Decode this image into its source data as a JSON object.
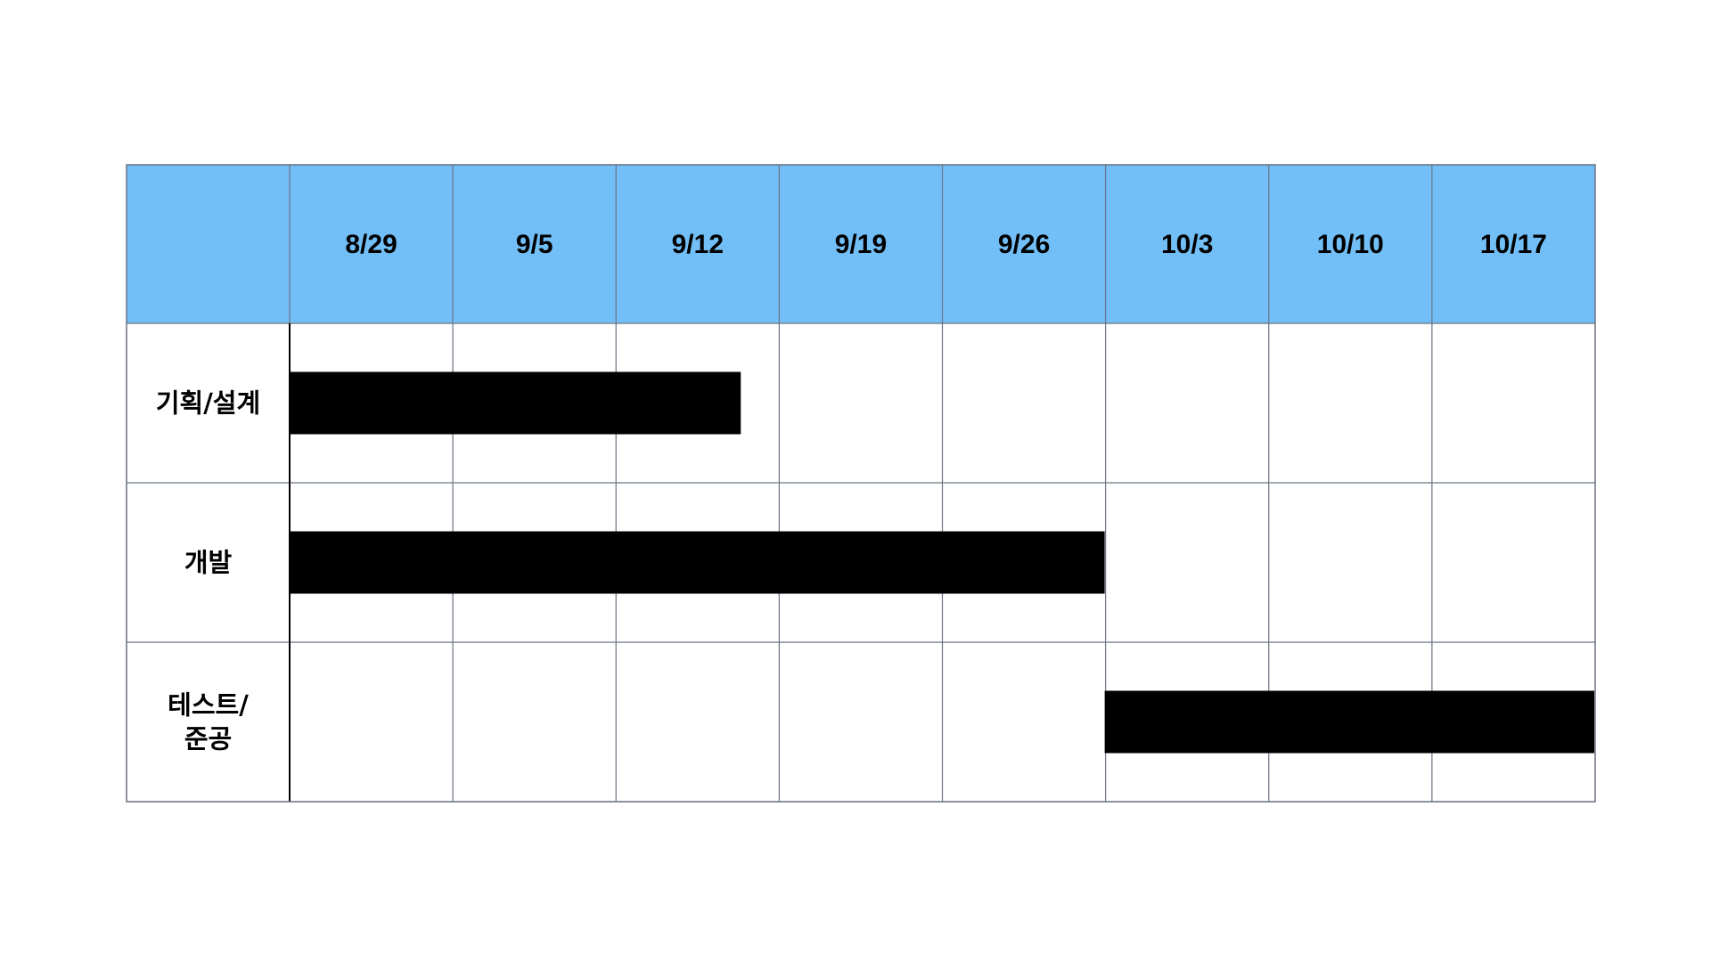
{
  "chart_data": {
    "type": "gantt",
    "columns": [
      "8/29",
      "9/5",
      "9/12",
      "9/19",
      "9/26",
      "10/3",
      "10/10",
      "10/17"
    ],
    "tasks": [
      {
        "label_lines": [
          "기획/설계"
        ],
        "start": "8/29",
        "end_week_fraction": 2.77
      },
      {
        "label_lines": [
          "개발"
        ],
        "start": "8/29",
        "end_week_fraction": 5.0
      },
      {
        "label_lines": [
          "테스트/",
          "준공"
        ],
        "start_week_fraction": 5.0,
        "end_week_fraction": 8.0
      }
    ],
    "colors": {
      "header_fill": "#72bff8",
      "grid_line": "#6b7385",
      "bar_fill": "#000000",
      "background": "#ffffff"
    }
  }
}
